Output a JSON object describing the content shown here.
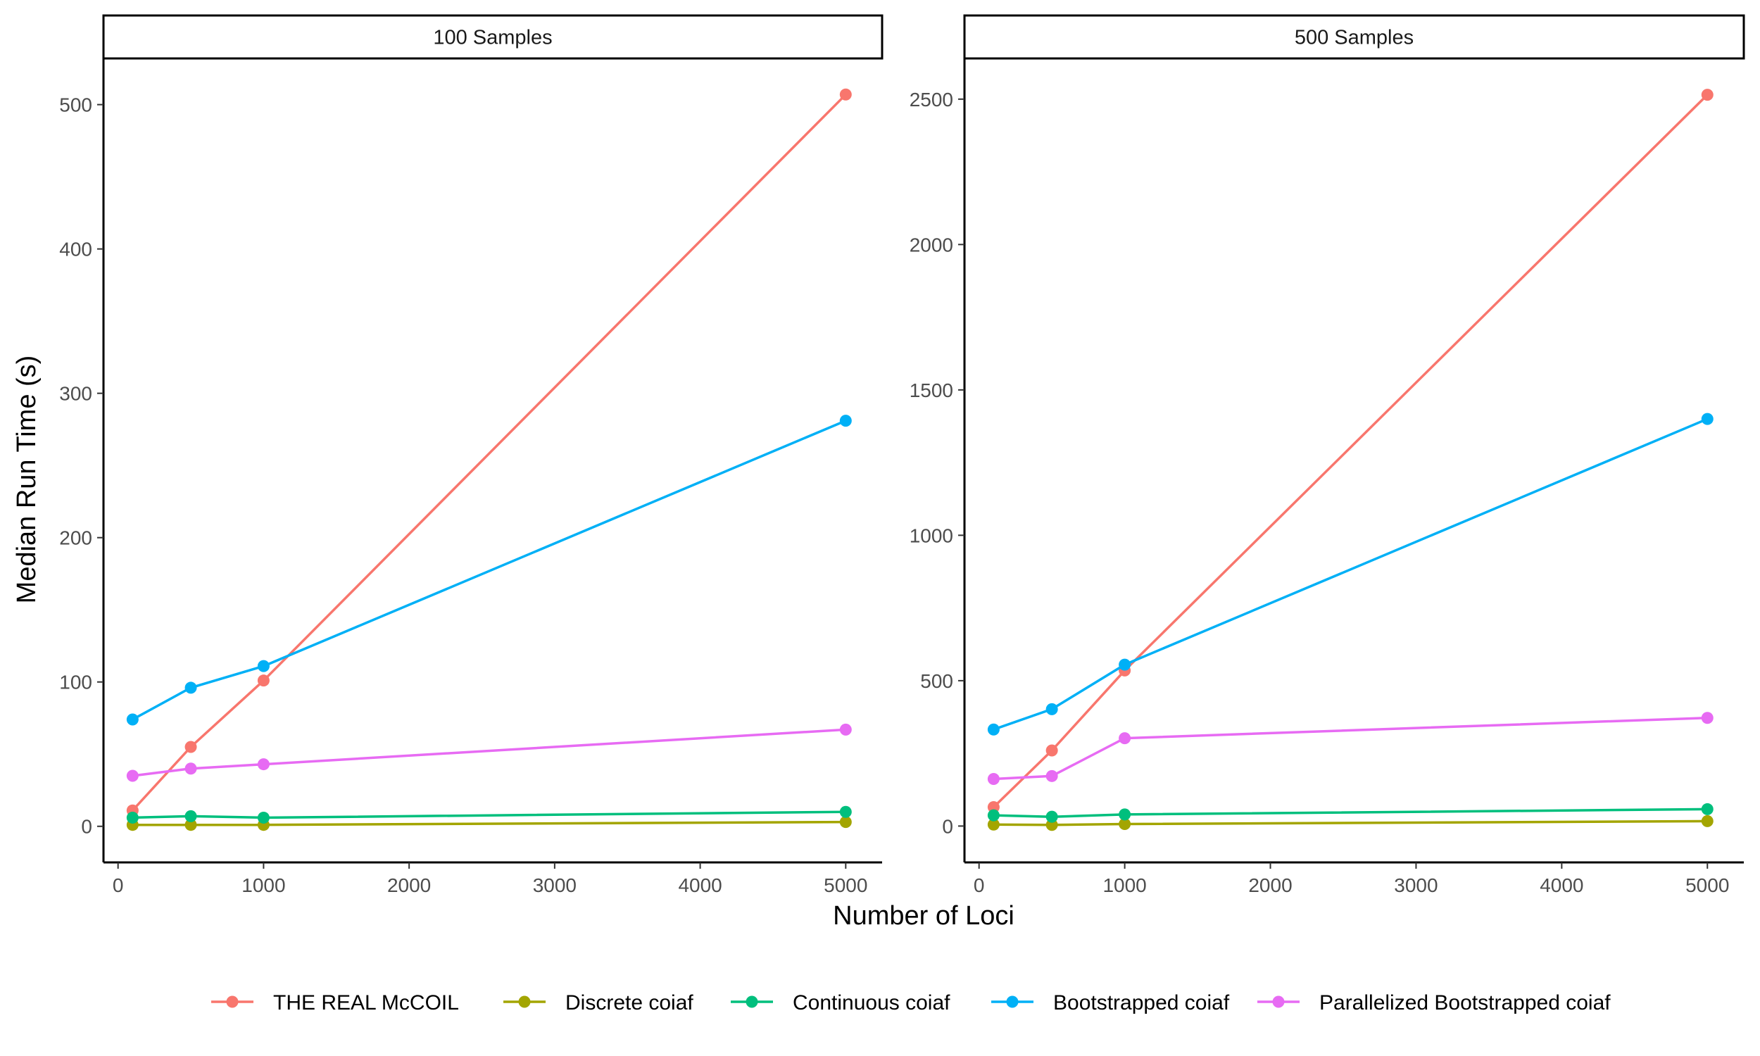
{
  "chart_data": {
    "type": "line",
    "xlabel": "Number of Loci",
    "ylabel": "Median Run Time (s)",
    "legend_position": "bottom",
    "grid": false,
    "x": [
      100,
      500,
      1000,
      5000
    ],
    "series_names": [
      "THE REAL McCOIL",
      "Discrete coiaf",
      "Continuous coiaf",
      "Bootstrapped coiaf",
      "Parallelized Bootstrapped coiaf"
    ],
    "colors": [
      "#F8766D",
      "#A3A500",
      "#00BF7D",
      "#00B0F6",
      "#E76BF3"
    ],
    "panels": [
      {
        "title": "100 Samples",
        "xlim": [
          -100,
          5250
        ],
        "ylim": [
          -25,
          532
        ],
        "xticks": [
          0,
          1000,
          2000,
          3000,
          4000,
          5000
        ],
        "yticks": [
          0,
          100,
          200,
          300,
          400,
          500
        ],
        "series": [
          {
            "name": "THE REAL McCOIL",
            "values": [
              11,
              55,
              101,
              507
            ]
          },
          {
            "name": "Discrete coiaf",
            "values": [
              1,
              1,
              1,
              3
            ]
          },
          {
            "name": "Continuous coiaf",
            "values": [
              6,
              7,
              6,
              10
            ]
          },
          {
            "name": "Bootstrapped coiaf",
            "values": [
              74,
              96,
              111,
              281
            ]
          },
          {
            "name": "Parallelized Bootstrapped coiaf",
            "values": [
              35,
              40,
              43,
              67
            ]
          }
        ]
      },
      {
        "title": "500 Samples",
        "xlim": [
          -100,
          5250
        ],
        "ylim": [
          -125,
          2640
        ],
        "xticks": [
          0,
          1000,
          2000,
          3000,
          4000,
          5000
        ],
        "yticks": [
          0,
          500,
          1000,
          1500,
          2000,
          2500
        ],
        "series": [
          {
            "name": "THE REAL McCOIL",
            "values": [
              65,
              260,
              535,
              2515
            ]
          },
          {
            "name": "Discrete coiaf",
            "values": [
              5,
              4,
              7,
              17
            ]
          },
          {
            "name": "Continuous coiaf",
            "values": [
              37,
              32,
              40,
              58
            ]
          },
          {
            "name": "Bootstrapped coiaf",
            "values": [
              332,
              402,
              555,
              1400
            ]
          },
          {
            "name": "Parallelized Bootstrapped coiaf",
            "values": [
              162,
              172,
              302,
              372
            ]
          }
        ]
      }
    ]
  }
}
